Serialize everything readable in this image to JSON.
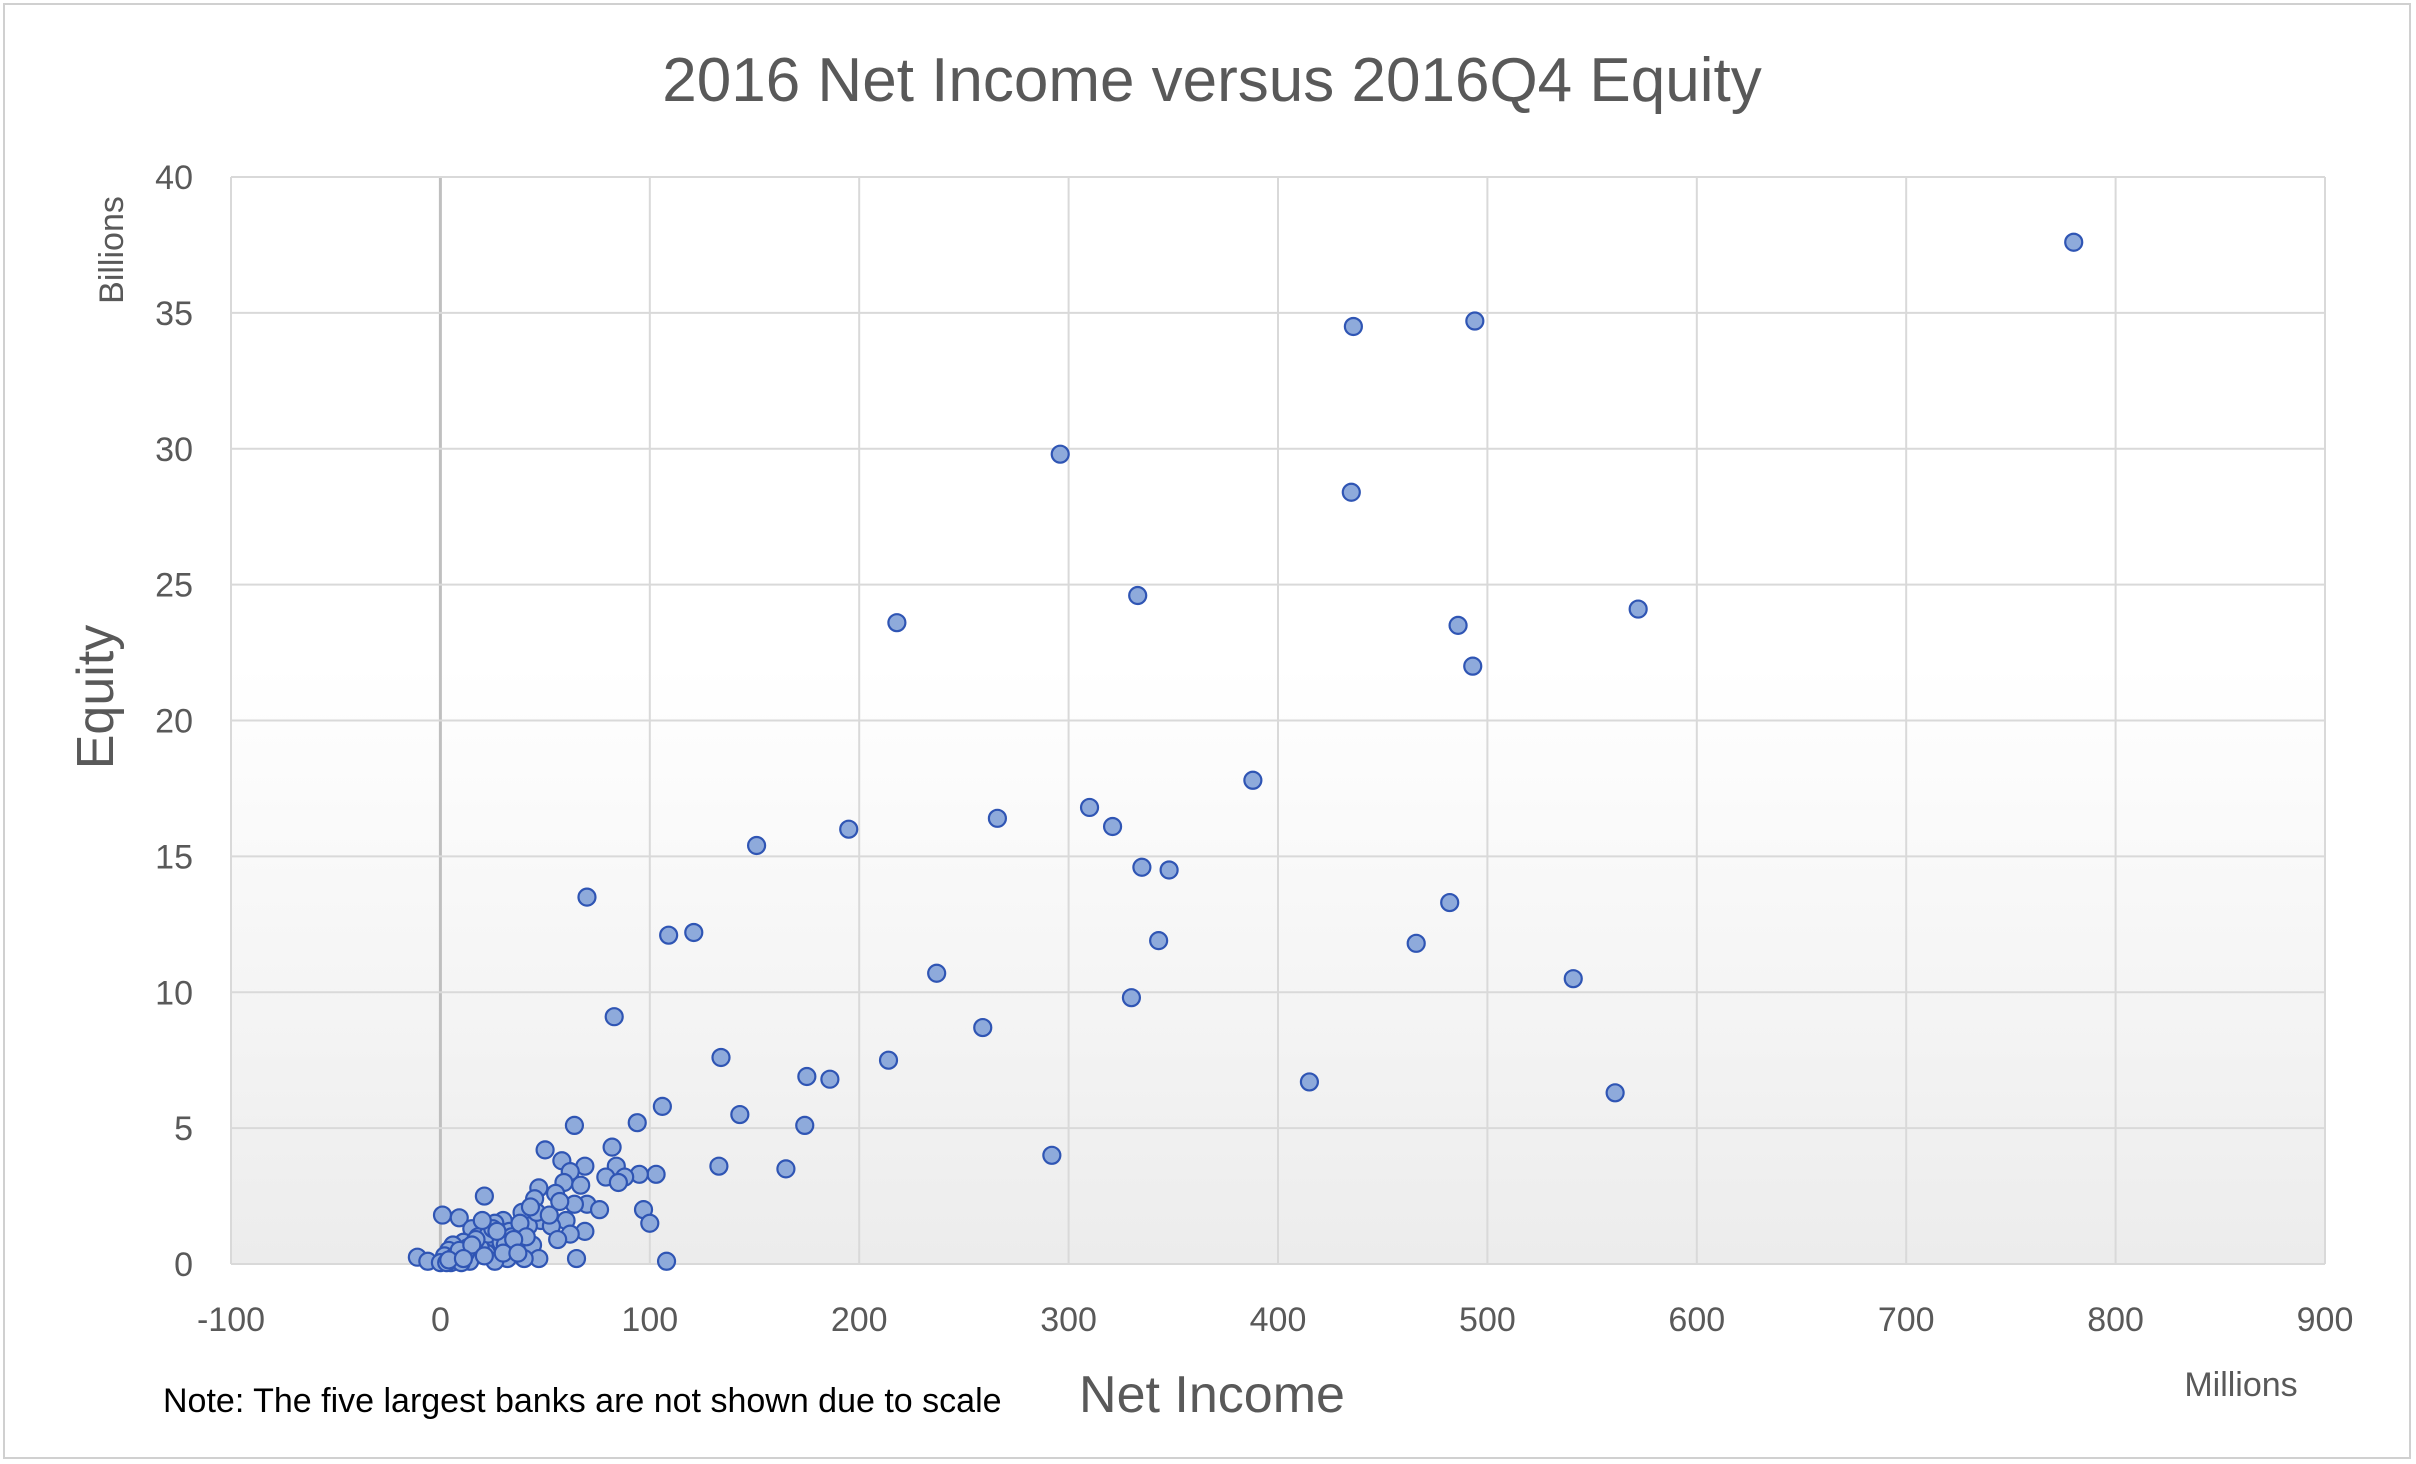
{
  "chart_data": {
    "type": "scatter",
    "title": "2016 Net Income versus 2016Q4 Equity",
    "xlabel": "Net Income",
    "ylabel": "Equity",
    "x_unit_label": "Millions",
    "y_unit_label": "Billions",
    "note": "Note: The five largest banks are not shown due to scale",
    "xlim": [
      -100,
      900
    ],
    "ylim": [
      0,
      40
    ],
    "x_ticks": [
      -100,
      0,
      100,
      200,
      300,
      400,
      500,
      600,
      700,
      800,
      900
    ],
    "y_ticks": [
      0,
      5,
      10,
      15,
      20,
      25,
      30,
      35,
      40
    ],
    "grid": true,
    "legend": "none",
    "colors": {
      "marker_fill": "#8eaadb",
      "marker_stroke": "#2f55b4",
      "grid": "#d9d9d9",
      "zero_line": "#bfbfbf",
      "plot_gradient_top": "#ffffff",
      "plot_gradient_bottom": "#ececec"
    },
    "points": [
      [
        780,
        37.6
      ],
      [
        436,
        34.5
      ],
      [
        494,
        34.7
      ],
      [
        296,
        29.8
      ],
      [
        435,
        28.4
      ],
      [
        333,
        24.6
      ],
      [
        218,
        23.6
      ],
      [
        486,
        23.5
      ],
      [
        572,
        24.1
      ],
      [
        493,
        22.0
      ],
      [
        388,
        17.8
      ],
      [
        310,
        16.8
      ],
      [
        321,
        16.1
      ],
      [
        266,
        16.4
      ],
      [
        195,
        16.0
      ],
      [
        151,
        15.4
      ],
      [
        335,
        14.6
      ],
      [
        348,
        14.5
      ],
      [
        70,
        13.5
      ],
      [
        482,
        13.3
      ],
      [
        109,
        12.1
      ],
      [
        121,
        12.2
      ],
      [
        343,
        11.9
      ],
      [
        466,
        11.8
      ],
      [
        237,
        10.7
      ],
      [
        541,
        10.5
      ],
      [
        330,
        9.8
      ],
      [
        83,
        9.1
      ],
      [
        259,
        8.7
      ],
      [
        134,
        7.6
      ],
      [
        214,
        7.5
      ],
      [
        175,
        6.9
      ],
      [
        186,
        6.8
      ],
      [
        415,
        6.7
      ],
      [
        561,
        6.3
      ],
      [
        106,
        5.8
      ],
      [
        143,
        5.5
      ],
      [
        94,
        5.2
      ],
      [
        64,
        5.1
      ],
      [
        174,
        5.1
      ],
      [
        292,
        4.0
      ],
      [
        50,
        4.2
      ],
      [
        82,
        4.3
      ],
      [
        58,
        3.8
      ],
      [
        69,
        3.6
      ],
      [
        84,
        3.6
      ],
      [
        133,
        3.6
      ],
      [
        165,
        3.5
      ],
      [
        103,
        3.3
      ],
      [
        95,
        3.3
      ],
      [
        62,
        3.4
      ],
      [
        79,
        3.2
      ],
      [
        88,
        3.2
      ],
      [
        59,
        3.0
      ],
      [
        67,
        2.9
      ],
      [
        85,
        3.0
      ],
      [
        47,
        2.8
      ],
      [
        55,
        2.6
      ],
      [
        21,
        2.5
      ],
      [
        45,
        2.4
      ],
      [
        70,
        2.2
      ],
      [
        97,
        2.0
      ],
      [
        76,
        2.0
      ],
      [
        64,
        2.2
      ],
      [
        1,
        1.8
      ],
      [
        9,
        1.7
      ],
      [
        39,
        1.9
      ],
      [
        30,
        1.6
      ],
      [
        48,
        1.6
      ],
      [
        60,
        1.6
      ],
      [
        100,
        1.5
      ],
      [
        26,
        1.5
      ],
      [
        42,
        1.4
      ],
      [
        53,
        1.4
      ],
      [
        69,
        1.2
      ],
      [
        15,
        1.3
      ],
      [
        33,
        1.2
      ],
      [
        62,
        1.1
      ],
      [
        56,
        0.9
      ],
      [
        44,
        0.7
      ],
      [
        18,
        1.0
      ],
      [
        24,
        0.9
      ],
      [
        11,
        0.8
      ],
      [
        6,
        0.7
      ],
      [
        4,
        0.5
      ],
      [
        13,
        0.6
      ],
      [
        28,
        0.5
      ],
      [
        36,
        0.6
      ],
      [
        2,
        0.3
      ],
      [
        8,
        0.2
      ],
      [
        16,
        0.3
      ],
      [
        22,
        0.4
      ],
      [
        32,
        0.2
      ],
      [
        47,
        0.2
      ],
      [
        65,
        0.2
      ],
      [
        40,
        0.2
      ],
      [
        26,
        0.1
      ],
      [
        14,
        0.1
      ],
      [
        108,
        0.1
      ],
      [
        -11,
        0.25
      ],
      [
        -6,
        0.1
      ],
      [
        0,
        0.05
      ],
      [
        5,
        0.05
      ],
      [
        10,
        0.05
      ],
      [
        3,
        0.05
      ],
      [
        19,
        0.6
      ],
      [
        23,
        1.1
      ],
      [
        29,
        0.8
      ],
      [
        34,
        1.0
      ],
      [
        38,
        1.5
      ],
      [
        12,
        0.4
      ],
      [
        7,
        0.3
      ],
      [
        17,
        0.9
      ],
      [
        25,
        1.3
      ],
      [
        31,
        0.7
      ],
      [
        41,
        1.0
      ],
      [
        46,
        1.9
      ],
      [
        52,
        1.8
      ],
      [
        57,
        2.3
      ],
      [
        43,
        2.1
      ],
      [
        20,
        1.6
      ],
      [
        27,
        1.2
      ],
      [
        35,
        0.9
      ],
      [
        9,
        0.5
      ],
      [
        15,
        0.7
      ],
      [
        21,
        0.3
      ],
      [
        30,
        0.4
      ],
      [
        37,
        0.4
      ],
      [
        4,
        0.15
      ],
      [
        11,
        0.2
      ]
    ]
  }
}
